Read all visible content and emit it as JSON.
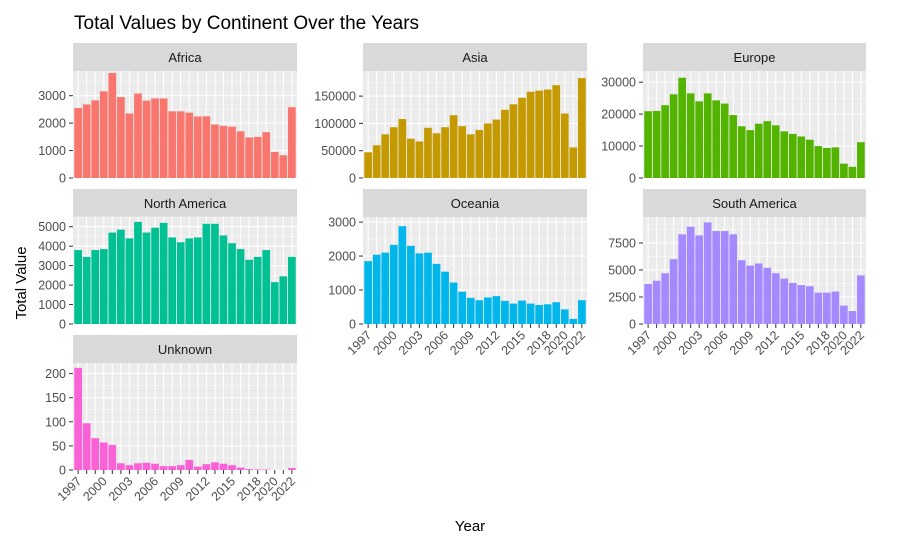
{
  "chart_data": {
    "type": "bar",
    "title": "Total Values by Continent Over the Years",
    "xlabel": "Year",
    "ylabel": "Total Value",
    "x": [
      1997,
      1998,
      1999,
      2000,
      2001,
      2002,
      2003,
      2004,
      2005,
      2006,
      2007,
      2008,
      2009,
      2010,
      2011,
      2012,
      2013,
      2014,
      2015,
      2016,
      2017,
      2018,
      2019,
      2020,
      2021,
      2022
    ],
    "x_tick_labels": [
      "1997",
      "2000",
      "2003",
      "2006",
      "2009",
      "2012",
      "2015",
      "2018",
      "2020",
      "2022"
    ],
    "grid": true,
    "legend": "none",
    "facets": [
      {
        "name": "Africa",
        "color": "#F8766D",
        "ylim": [
          0,
          3900
        ],
        "yticks": [
          0,
          1000,
          2000,
          3000
        ],
        "ytick_labels": [
          "0",
          "1000",
          "2000",
          "3000"
        ],
        "values": [
          2550,
          2680,
          2830,
          3160,
          3830,
          2950,
          2350,
          3080,
          2820,
          2900,
          2900,
          2430,
          2430,
          2380,
          2240,
          2250,
          1950,
          1900,
          1870,
          1700,
          1480,
          1500,
          1670,
          950,
          830,
          2580
        ]
      },
      {
        "name": "Asia",
        "color": "#C49A00",
        "ylim": [
          0,
          196000
        ],
        "yticks": [
          0,
          50000,
          100000,
          150000
        ],
        "ytick_labels": [
          "0",
          "50000",
          "100000",
          "150000"
        ],
        "values": [
          47000,
          60000,
          80000,
          93000,
          108000,
          72000,
          67000,
          92000,
          82000,
          93000,
          115000,
          95000,
          80000,
          88000,
          100000,
          107000,
          125000,
          135000,
          147000,
          158000,
          160000,
          162000,
          170000,
          118000,
          56000,
          183000
        ]
      },
      {
        "name": "Europe",
        "color": "#53B400",
        "ylim": [
          0,
          33500
        ],
        "yticks": [
          0,
          10000,
          20000,
          30000
        ],
        "ytick_labels": [
          "0",
          "10000",
          "20000",
          "30000"
        ],
        "values": [
          20900,
          21000,
          22800,
          26200,
          31400,
          26500,
          24000,
          26500,
          24300,
          23300,
          19700,
          16200,
          15000,
          17000,
          17800,
          16500,
          14600,
          13800,
          13000,
          12000,
          10000,
          9400,
          9600,
          4500,
          3500,
          11200
        ]
      },
      {
        "name": "North America",
        "color": "#00C094",
        "ylim": [
          0,
          5500
        ],
        "yticks": [
          0,
          1000,
          2000,
          3000,
          4000,
          5000
        ],
        "ytick_labels": [
          "0",
          "1000",
          "2000",
          "3000",
          "4000",
          "5000"
        ],
        "values": [
          3800,
          3450,
          3800,
          3850,
          4700,
          4850,
          4400,
          5250,
          4700,
          4950,
          5200,
          4450,
          4200,
          4400,
          4450,
          5150,
          5150,
          4550,
          4150,
          3850,
          3300,
          3450,
          3800,
          2150,
          2450,
          3450
        ]
      },
      {
        "name": "Oceania",
        "color": "#00B6EB",
        "ylim": [
          0,
          3150
        ],
        "yticks": [
          0,
          1000,
          2000,
          3000
        ],
        "ytick_labels": [
          "0",
          "1000",
          "2000",
          "3000"
        ],
        "values": [
          1850,
          2040,
          2100,
          2330,
          2880,
          2300,
          2080,
          2100,
          1770,
          1540,
          1220,
          950,
          770,
          700,
          780,
          820,
          680,
          600,
          690,
          600,
          560,
          580,
          640,
          430,
          150,
          700
        ]
      },
      {
        "name": "South America",
        "color": "#A58AFF",
        "ylim": [
          0,
          9900
        ],
        "yticks": [
          0,
          2500,
          5000,
          7500
        ],
        "ytick_labels": [
          "0",
          "2500",
          "5000",
          "7500"
        ],
        "values": [
          3700,
          4000,
          4700,
          6000,
          8300,
          9000,
          8200,
          9400,
          8600,
          8600,
          8300,
          5900,
          5400,
          5600,
          5200,
          4700,
          4200,
          3800,
          3600,
          3500,
          2900,
          2900,
          3000,
          1700,
          1200,
          4500
        ]
      },
      {
        "name": "Unknown",
        "color": "#FB61D7",
        "ylim": [
          0,
          222
        ],
        "yticks": [
          0,
          50,
          100,
          150,
          200
        ],
        "ytick_labels": [
          "0",
          "50",
          "100",
          "150",
          "200"
        ],
        "values": [
          212,
          97,
          66,
          57,
          52,
          14,
          10,
          14,
          15,
          13,
          8,
          8,
          10,
          21,
          7,
          12,
          16,
          13,
          10,
          5,
          2,
          1,
          1,
          0,
          0,
          4
        ]
      }
    ]
  }
}
